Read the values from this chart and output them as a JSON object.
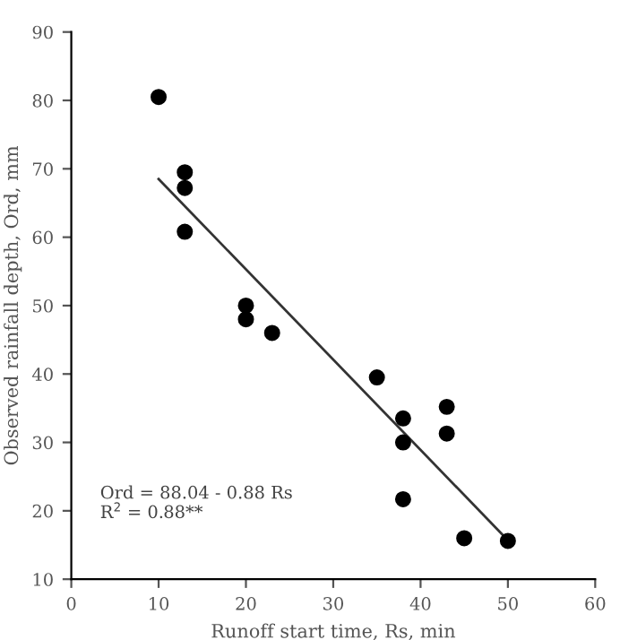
{
  "chart_data": {
    "type": "scatter",
    "xlabel": "Runoff start time, Rs, min",
    "ylabel": "Observed rainfall depth, Ord, mm",
    "xlim": [
      0,
      60
    ],
    "xticks": [
      0,
      10,
      20,
      30,
      40,
      50,
      60
    ],
    "ylim": [
      10,
      90
    ],
    "yticks": [
      10,
      20,
      30,
      40,
      50,
      60,
      70,
      80,
      90
    ],
    "grid": false,
    "legend": false,
    "marker": "circle",
    "series": [
      {
        "color": "#000000",
        "x": [
          10,
          13,
          13,
          13,
          20,
          20,
          23,
          35,
          38,
          38,
          38,
          43,
          43,
          45,
          50
        ],
        "values": [
          80.5,
          69.5,
          67.2,
          60.8,
          50,
          48,
          46,
          39.5,
          33.5,
          30,
          21.7,
          35.2,
          31.3,
          16,
          15.6
        ]
      },
      {
        "type": "line",
        "color": "#333333",
        "line_style": "solid",
        "marker": "none",
        "x": [
          10,
          50
        ],
        "values": [
          68.5,
          15.7
        ]
      }
    ],
    "annotations": [
      {
        "text": "Ord = 88.04 - 0.88 Rs\nR$^{2}$ = 0.88**"
      }
    ]
  }
}
